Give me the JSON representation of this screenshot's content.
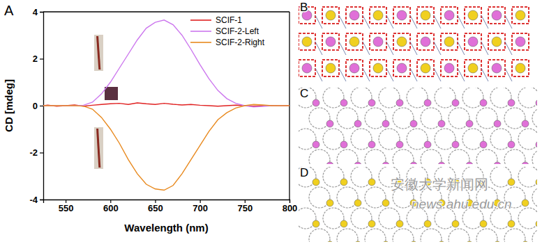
{
  "chart_data": {
    "type": "line",
    "x_label": "Wavelength (nm)",
    "y_label": "CD [mdeg]",
    "annotations": [
      "A"
    ],
    "x": [
      525,
      530,
      540,
      550,
      560,
      570,
      580,
      590,
      600,
      610,
      620,
      630,
      640,
      650,
      660,
      670,
      680,
      690,
      700,
      710,
      720,
      730,
      740,
      750,
      760,
      770,
      780,
      790,
      800
    ],
    "series": [
      {
        "name": "SCIF-1",
        "color": "#e02020",
        "values": [
          0,
          0.02,
          -0.02,
          0,
          0.03,
          -0.02,
          0.02,
          0.05,
          0.08,
          0.1,
          0.05,
          0.12,
          0.08,
          0.05,
          0.1,
          0.06,
          0.03,
          0.05,
          0.02,
          0,
          -0.02,
          0,
          0.02,
          0,
          -0.02,
          0,
          0.01,
          -0.01,
          0
        ]
      },
      {
        "name": "SCIF-2-Left",
        "color": "#cc77ee",
        "values": [
          0,
          0,
          0,
          0,
          0,
          0.02,
          0.15,
          0.5,
          1.0,
          1.6,
          2.2,
          2.8,
          3.3,
          3.55,
          3.65,
          3.45,
          3.0,
          2.4,
          1.75,
          1.15,
          0.65,
          0.3,
          0.1,
          0.0,
          -0.05,
          -0.03,
          0,
          0,
          0
        ]
      },
      {
        "name": "SCIF-2-Right",
        "color": "#e8891e",
        "values": [
          0,
          0,
          0,
          0,
          0,
          -0.02,
          -0.15,
          -0.5,
          -1.0,
          -1.6,
          -2.3,
          -2.9,
          -3.35,
          -3.55,
          -3.6,
          -3.4,
          -2.9,
          -2.3,
          -1.7,
          -1.1,
          -0.6,
          -0.3,
          -0.1,
          0.0,
          0.05,
          0.03,
          0,
          0,
          0
        ]
      }
    ],
    "xlim": [
      525,
      800
    ],
    "xticks": [
      550,
      600,
      650,
      700,
      750,
      800
    ],
    "ylim": [
      -4,
      4
    ],
    "yticks": [
      -4,
      -2,
      0,
      2,
      4
    ],
    "grid": false,
    "legend": "upper right"
  },
  "panels": [
    {
      "label": "B"
    },
    {
      "label": "C"
    },
    {
      "label": "D"
    }
  ],
  "watermark": [
    "安徽大学新闻网",
    "news.ahu.edu.cn"
  ]
}
